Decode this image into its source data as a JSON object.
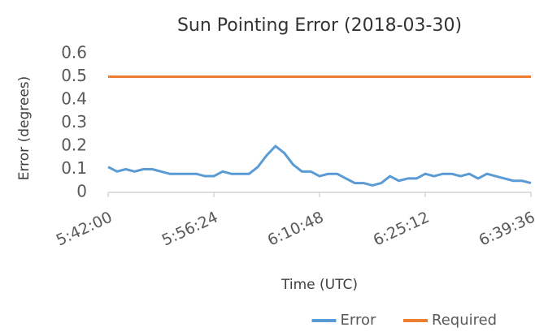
{
  "chart_data": {
    "type": "line",
    "title": "Sun Pointing Error (2018-03-30)",
    "xlabel": "Time (UTC)",
    "ylabel": "Error (degrees)",
    "xlim": [
      20520,
      23976
    ],
    "xticks": [
      {
        "value": 20520,
        "label": "5:42:00"
      },
      {
        "value": 21384,
        "label": "5:56:24"
      },
      {
        "value": 22248,
        "label": "6:10:48"
      },
      {
        "value": 23112,
        "label": "6:25:12"
      },
      {
        "value": 23976,
        "label": "6:39:36"
      }
    ],
    "ylim": [
      0,
      0.6
    ],
    "yticks": [
      0,
      0.1,
      0.2,
      0.3,
      0.4,
      0.5,
      0.6
    ],
    "grid": false,
    "legend": "bottom-right",
    "series": [
      {
        "name": "Error",
        "color": "#5b9bd5",
        "x": [
          20520,
          20592,
          20664,
          20736,
          20808,
          20880,
          20952,
          21024,
          21096,
          21168,
          21240,
          21312,
          21384,
          21456,
          21528,
          21600,
          21672,
          21744,
          21816,
          21888,
          21960,
          22032,
          22104,
          22176,
          22248,
          22320,
          22392,
          22464,
          22536,
          22608,
          22680,
          22752,
          22824,
          22896,
          22968,
          23040,
          23112,
          23184,
          23256,
          23328,
          23400,
          23472,
          23544,
          23616,
          23688,
          23760,
          23832,
          23904,
          23976
        ],
        "values": [
          0.11,
          0.09,
          0.1,
          0.09,
          0.1,
          0.1,
          0.09,
          0.08,
          0.08,
          0.08,
          0.08,
          0.07,
          0.07,
          0.09,
          0.08,
          0.08,
          0.08,
          0.11,
          0.16,
          0.2,
          0.17,
          0.12,
          0.09,
          0.09,
          0.07,
          0.08,
          0.08,
          0.06,
          0.04,
          0.04,
          0.03,
          0.04,
          0.07,
          0.05,
          0.06,
          0.06,
          0.08,
          0.07,
          0.08,
          0.08,
          0.07,
          0.08,
          0.06,
          0.08,
          0.07,
          0.06,
          0.05,
          0.05,
          0.04
        ]
      },
      {
        "name": "Required",
        "color": "#ed7d31",
        "x": [
          20520,
          23976
        ],
        "values": [
          0.5,
          0.5
        ]
      }
    ]
  }
}
